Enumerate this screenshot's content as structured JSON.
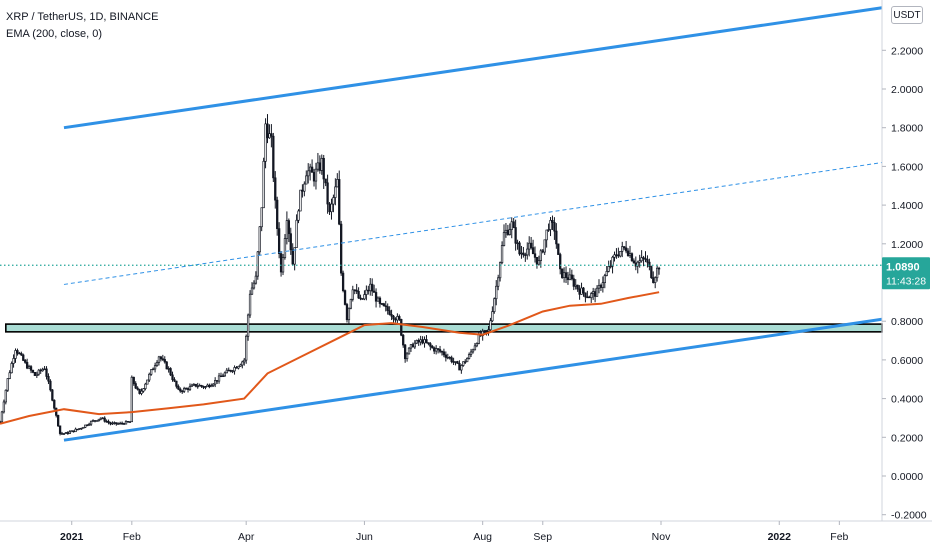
{
  "legend": {
    "title": "XRP / TetherUS, 1D, BINANCE",
    "indicator": "EMA (200, close, 0)"
  },
  "currency_badge": "USDT",
  "price_tag": {
    "price": "1.0890",
    "countdown": "11:43:28"
  },
  "colors": {
    "candle": "#131722",
    "ema": "#e1581a",
    "channel": "#2f91e6",
    "zone_fill": "#a9dcd4",
    "price_tag": "#26a69a",
    "price_line": "#26a69a"
  },
  "chart_data": {
    "type": "line",
    "symbol": "XRP / TetherUS",
    "y_axis": {
      "ticks": [
        -0.2,
        0.0,
        0.2,
        0.4,
        0.6,
        0.8,
        1.0,
        1.2,
        1.4,
        1.6,
        1.8,
        2.0,
        2.2
      ],
      "tick_labels": [
        "-0.2000",
        "0.0000",
        "0.2000",
        "0.4000",
        "0.6000",
        "0.8000",
        "1.0000",
        "1.2000",
        "1.4000",
        "1.6000",
        "1.8000",
        "2.0000",
        "2.2000"
      ],
      "top_partial_label": "2",
      "range": [
        -0.25,
        2.42
      ]
    },
    "x_axis": {
      "labels": [
        "2021",
        "Feb",
        "Apr",
        "Jun",
        "Aug",
        "Sep",
        "Nov",
        "2022",
        "Feb"
      ],
      "label_dates": [
        "2021-01-01",
        "2021-02-01",
        "2021-04-01",
        "2021-06-01",
        "2021-08-01",
        "2021-09-01",
        "2021-11-01",
        "2022-01-01",
        "2022-02-01"
      ],
      "range": [
        "2020-11-25",
        "2022-02-23"
      ]
    },
    "price_series": {
      "name": "XRP / TetherUS",
      "x": [
        "2020-11-25",
        "2020-11-29",
        "2020-12-03",
        "2020-12-08",
        "2020-12-13",
        "2020-12-18",
        "2020-12-22",
        "2020-12-26",
        "2020-12-29",
        "2021-01-01",
        "2021-01-06",
        "2021-01-11",
        "2021-01-16",
        "2021-01-21",
        "2021-01-26",
        "2021-01-31",
        "2021-02-01",
        "2021-02-05",
        "2021-02-10",
        "2021-02-15",
        "2021-02-20",
        "2021-02-25",
        "2021-03-01",
        "2021-03-06",
        "2021-03-11",
        "2021-03-16",
        "2021-03-21",
        "2021-03-26",
        "2021-03-31",
        "2021-04-03",
        "2021-04-06",
        "2021-04-09",
        "2021-04-11",
        "2021-04-14",
        "2021-04-16",
        "2021-04-19",
        "2021-04-22",
        "2021-04-25",
        "2021-04-28",
        "2021-05-02",
        "2021-05-06",
        "2021-05-10",
        "2021-05-14",
        "2021-05-18",
        "2021-05-20",
        "2021-05-23",
        "2021-05-26",
        "2021-05-30",
        "2021-06-04",
        "2021-06-09",
        "2021-06-14",
        "2021-06-19",
        "2021-06-22",
        "2021-06-26",
        "2021-07-01",
        "2021-07-06",
        "2021-07-11",
        "2021-07-16",
        "2021-07-20",
        "2021-07-25",
        "2021-07-30",
        "2021-08-04",
        "2021-08-08",
        "2021-08-12",
        "2021-08-16",
        "2021-08-20",
        "2021-08-25",
        "2021-08-30",
        "2021-09-04",
        "2021-09-07",
        "2021-09-10",
        "2021-09-15",
        "2021-09-20",
        "2021-09-25",
        "2021-09-29",
        "2021-10-04",
        "2021-10-09",
        "2021-10-14",
        "2021-10-19",
        "2021-10-24",
        "2021-10-28",
        "2021-10-31"
      ],
      "y": [
        0.28,
        0.5,
        0.66,
        0.58,
        0.52,
        0.56,
        0.4,
        0.22,
        0.22,
        0.23,
        0.25,
        0.28,
        0.3,
        0.27,
        0.27,
        0.28,
        0.5,
        0.42,
        0.52,
        0.62,
        0.55,
        0.44,
        0.45,
        0.47,
        0.46,
        0.49,
        0.53,
        0.56,
        0.6,
        0.95,
        1.02,
        1.4,
        1.82,
        1.72,
        1.4,
        1.05,
        1.35,
        1.1,
        1.4,
        1.58,
        1.55,
        1.62,
        1.35,
        1.52,
        1.05,
        0.82,
        0.98,
        0.9,
        0.98,
        0.88,
        0.85,
        0.8,
        0.62,
        0.68,
        0.7,
        0.66,
        0.64,
        0.6,
        0.56,
        0.62,
        0.72,
        0.75,
        0.98,
        1.25,
        1.3,
        1.15,
        1.18,
        1.1,
        1.3,
        1.28,
        1.05,
        1.02,
        0.96,
        0.93,
        0.95,
        1.05,
        1.15,
        1.18,
        1.1,
        1.12,
        1.02,
        1.089
      ]
    },
    "ema_series": {
      "name": "EMA (200, close, 0)",
      "x": [
        "2020-11-25",
        "2020-12-10",
        "2020-12-28",
        "2021-01-15",
        "2021-02-01",
        "2021-02-20",
        "2021-03-10",
        "2021-03-31",
        "2021-04-12",
        "2021-04-30",
        "2021-05-20",
        "2021-06-01",
        "2021-06-15",
        "2021-07-01",
        "2021-07-20",
        "2021-08-01",
        "2021-08-15",
        "2021-09-01",
        "2021-09-15",
        "2021-10-01",
        "2021-10-15",
        "2021-10-31"
      ],
      "y": [
        0.27,
        0.31,
        0.345,
        0.32,
        0.33,
        0.35,
        0.37,
        0.4,
        0.53,
        0.62,
        0.72,
        0.78,
        0.79,
        0.77,
        0.74,
        0.73,
        0.78,
        0.85,
        0.88,
        0.89,
        0.92,
        0.95
      ]
    },
    "current_price": 1.089,
    "drawings": {
      "channel_upper": {
        "from": [
          "2020-12-28",
          1.8
        ],
        "to": [
          "2022-02-23",
          2.42
        ]
      },
      "channel_lower": {
        "from": [
          "2020-12-28",
          0.185
        ],
        "to": [
          "2022-02-23",
          0.81
        ]
      },
      "channel_mid_dashed": {
        "from": [
          "2020-12-28",
          0.99
        ],
        "to": [
          "2022-02-23",
          1.62
        ]
      },
      "support_zone": {
        "from_date": "2020-11-28",
        "to_date": "2022-02-23",
        "low": 0.745,
        "high": 0.785
      }
    },
    "grid": false,
    "legend_position": "top-left"
  }
}
